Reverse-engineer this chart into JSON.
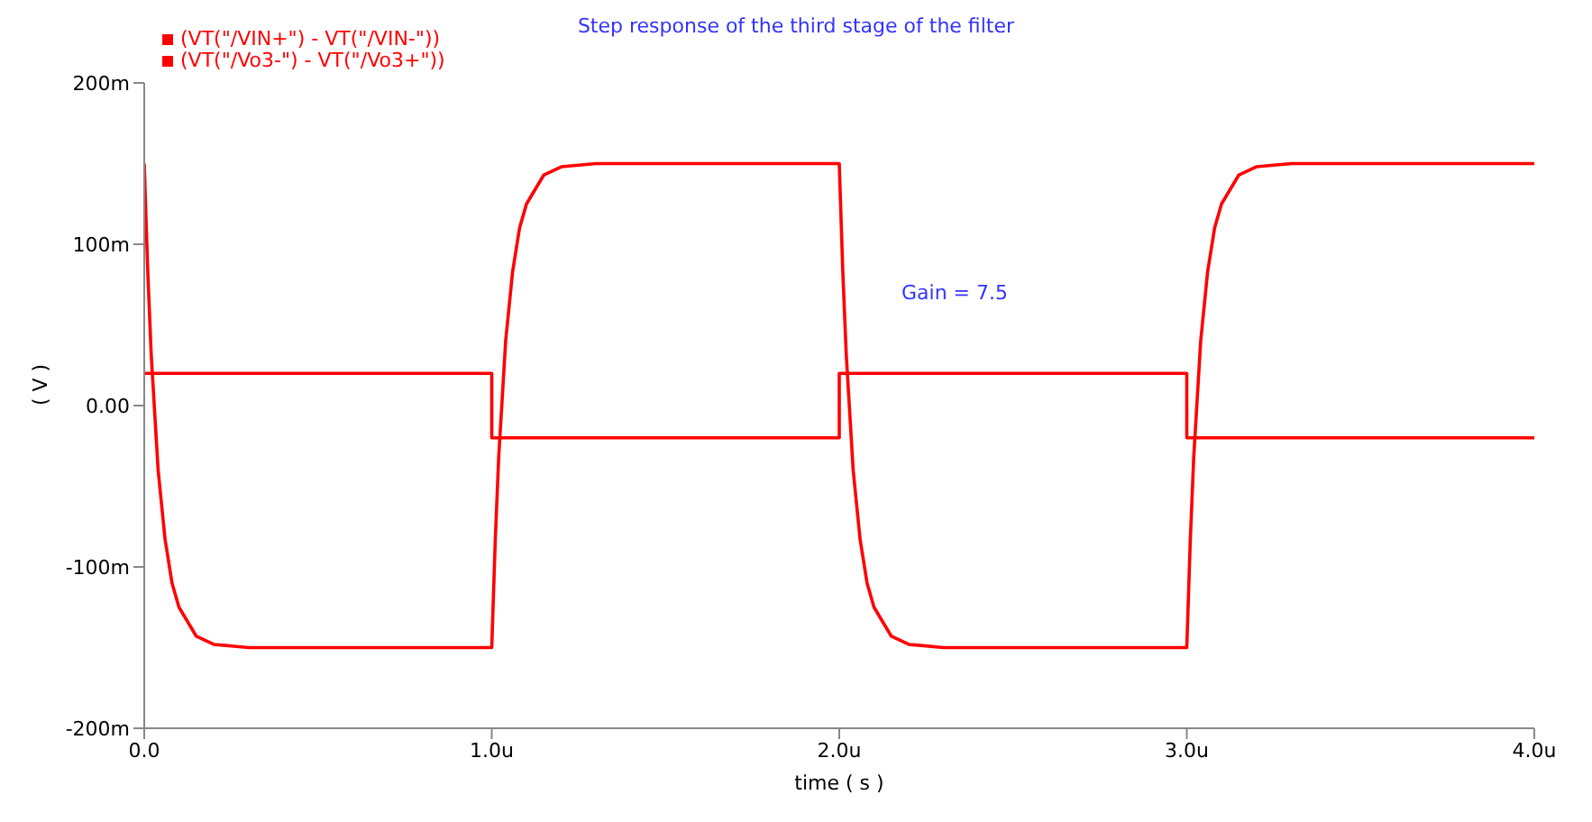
{
  "chart_data": {
    "type": "line",
    "title": "Step response of the third stage of the filter",
    "xlabel": "time ( s )",
    "ylabel": "( V )",
    "annotations": [
      "Gain = 7.5"
    ],
    "xlim": [
      0,
      4
    ],
    "xticks": [
      {
        "value": 0,
        "label": "0.0"
      },
      {
        "value": 1,
        "label": "1.0u"
      },
      {
        "value": 2,
        "label": "2.0u"
      },
      {
        "value": 3,
        "label": "3.0u"
      },
      {
        "value": 4,
        "label": "4.0u"
      }
    ],
    "ylim": [
      -200,
      200
    ],
    "yticks": [
      {
        "value": -200,
        "label": "-200m"
      },
      {
        "value": -100,
        "label": "-100m"
      },
      {
        "value": 0,
        "label": "0.00"
      },
      {
        "value": 100,
        "label": "100m"
      },
      {
        "value": 200,
        "label": "200m"
      }
    ],
    "grid": false,
    "legend": "top left",
    "series": [
      {
        "name": "(VT(\"/VIN+\") - VT(\"/VIN-\"))",
        "type": "step",
        "color": "#ff0000",
        "x": [
          0,
          1,
          2,
          3,
          4
        ],
        "values": [
          20,
          -20,
          20,
          -20,
          -20
        ]
      },
      {
        "name": "(VT(\"/Vo3-\") - VT(\"/Vo3+\"))",
        "color": "#ff0000",
        "x": [
          0,
          0.01,
          0.02,
          0.04,
          0.06,
          0.08,
          0.1,
          0.15,
          0.2,
          0.3,
          1,
          1.01,
          1.02,
          1.04,
          1.06,
          1.08,
          1.1,
          1.15,
          1.2,
          1.3,
          2,
          2.01,
          2.02,
          2.04,
          2.06,
          2.08,
          2.1,
          2.15,
          2.2,
          2.3,
          3,
          3.01,
          3.02,
          3.04,
          3.06,
          3.08,
          3.1,
          3.15,
          3.2,
          3.3,
          4
        ],
        "values": [
          150,
          84,
          32,
          -40,
          -83,
          -110,
          -125,
          -143,
          -148,
          -150,
          -150,
          -84,
          -32,
          40,
          83,
          110,
          125,
          143,
          148,
          150,
          150,
          84,
          32,
          -40,
          -83,
          -110,
          -125,
          -143,
          -148,
          -150,
          -150,
          -84,
          -32,
          40,
          83,
          110,
          125,
          143,
          148,
          150,
          150
        ]
      }
    ]
  }
}
